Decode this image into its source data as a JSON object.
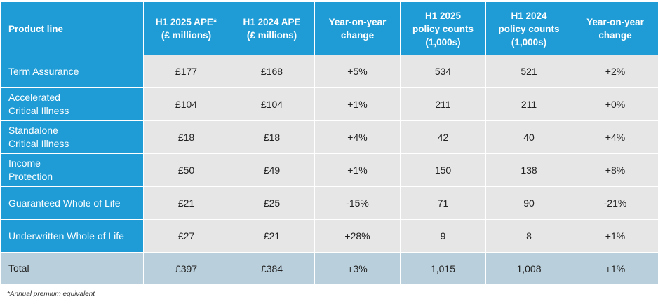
{
  "table": {
    "headers": [
      [
        "Product line"
      ],
      [
        "H1 2025 APE*",
        "(£ millions)"
      ],
      [
        "H1 2024 APE",
        "(£ millions)"
      ],
      [
        "Year-on-year",
        "change"
      ],
      [
        "H1 2025",
        "policy counts",
        "(1,000s)"
      ],
      [
        "H1 2024",
        "policy counts",
        "(1,000s)"
      ],
      [
        "Year-on-year",
        "change"
      ]
    ],
    "rows": [
      {
        "label": [
          "Term Assurance"
        ],
        "cells": [
          "£177",
          "£168",
          "+5%",
          "534",
          "521",
          "+2%"
        ]
      },
      {
        "label": [
          "Accelerated",
          "Critical Illness"
        ],
        "cells": [
          "£104",
          "£104",
          "+1%",
          "211",
          "211",
          "+0%"
        ]
      },
      {
        "label": [
          "Standalone",
          "Critical Illness"
        ],
        "cells": [
          "£18",
          "£18",
          "+4%",
          "42",
          "40",
          "+4%"
        ]
      },
      {
        "label": [
          "Income",
          "Protection"
        ],
        "cells": [
          "£50",
          "£49",
          "+1%",
          "150",
          "138",
          "+8%"
        ]
      },
      {
        "label": [
          "Guaranteed Whole of Life"
        ],
        "cells": [
          "£21",
          "£25",
          "-15%",
          "71",
          "90",
          "-21%"
        ]
      },
      {
        "label": [
          "Underwritten Whole of Life"
        ],
        "cells": [
          "£27",
          "£21",
          "+28%",
          "9",
          "8",
          "+1%"
        ]
      }
    ],
    "total": {
      "label": [
        "Total"
      ],
      "cells": [
        "£397",
        "£384",
        "+3%",
        "1,015",
        "1,008",
        "+1%"
      ]
    }
  },
  "footnote": "*Annual premium equivalent",
  "colors": {
    "header_blue": "#1f9cd6",
    "cell_grey": "#e6e6e6",
    "total_row": "#b9cfdb"
  }
}
